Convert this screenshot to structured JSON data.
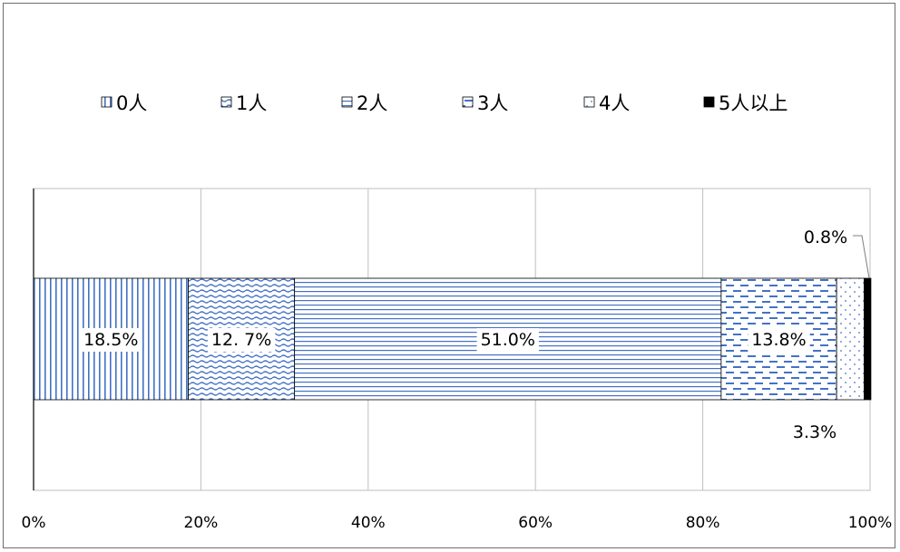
{
  "chart_data": {
    "type": "bar",
    "orientation": "horizontal",
    "stacked": true,
    "percent": true,
    "title": "",
    "xlabel": "",
    "ylabel": "",
    "xlim": [
      0,
      100
    ],
    "x_ticks": [
      "0%",
      "20%",
      "40%",
      "60%",
      "80%",
      "100%"
    ],
    "grid": "vertical",
    "legend_position": "top",
    "categories": [
      ""
    ],
    "series": [
      {
        "name": "0人",
        "values": [
          18.5
        ],
        "label": "18.5%",
        "pattern": "vertical-lines",
        "color": "#4472c4"
      },
      {
        "name": "1人",
        "values": [
          12.7
        ],
        "label": "12. 7%",
        "pattern": "wave",
        "color": "#4472c4"
      },
      {
        "name": "2人",
        "values": [
          51.0
        ],
        "label": "51.0%",
        "pattern": "horizontal-lines",
        "color": "#4472c4"
      },
      {
        "name": "3人",
        "values": [
          13.8
        ],
        "label": "13.8%",
        "pattern": "dashes",
        "color": "#4472c4"
      },
      {
        "name": "4人",
        "values": [
          3.3
        ],
        "label": "3.3%",
        "pattern": "dots",
        "color": "#4472c4"
      },
      {
        "name": "5人以上",
        "values": [
          0.8
        ],
        "label": "0.8%",
        "pattern": "solid",
        "color": "#000000"
      }
    ]
  }
}
